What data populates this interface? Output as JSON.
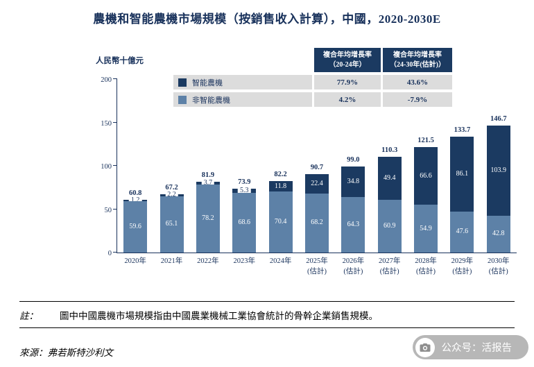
{
  "title": "農機和智能農機市場規模（按銷售收入計算），中國，2020-2030E",
  "y_axis": {
    "unit_label": "人民幣十億元",
    "ticks": [
      0,
      50,
      100,
      150,
      200
    ],
    "max": 200
  },
  "legend_table": {
    "headers": [
      "複合年均增長率\n（20-24年）",
      "複合年均增長率\n（24-30年(估計)）"
    ],
    "rows": [
      {
        "label": "智能農機",
        "swatch_color": "#1b3a61",
        "cagr_20_24": "77.9%",
        "cagr_24_30": "43.6%"
      },
      {
        "label": "非智能農機",
        "swatch_color": "#5d81a7",
        "cagr_20_24": "4.2%",
        "cagr_24_30": "-7.9%"
      }
    ]
  },
  "chart_data": {
    "type": "bar",
    "stacked": true,
    "title": "農機和智能農機市場規模（按銷售收入計算），中國，2020-2030E",
    "ylabel": "人民幣十億元",
    "ylim": [
      0,
      200
    ],
    "grid": false,
    "legend_position": "top-left-of-plot",
    "categories": [
      "2020年",
      "2021年",
      "2022年",
      "2023年",
      "2024年",
      "2025年\n(估計)",
      "2026年\n(估計)",
      "2027年\n(估計)",
      "2028年\n(估計)",
      "2029年\n(估計)",
      "2030年\n(估計)"
    ],
    "series": [
      {
        "name": "非智能農機",
        "color": "#5d81a7",
        "values": [
          59.6,
          65.1,
          78.2,
          68.6,
          70.4,
          68.2,
          64.3,
          60.9,
          54.9,
          47.6,
          42.8
        ]
      },
      {
        "name": "智能農機",
        "color": "#1b3a61",
        "values": [
          1.2,
          2.2,
          3.7,
          5.3,
          11.8,
          22.4,
          34.8,
          49.4,
          66.6,
          86.1,
          103.9
        ]
      }
    ],
    "totals": [
      60.8,
      67.2,
      81.9,
      73.9,
      82.2,
      90.7,
      99.0,
      110.3,
      121.5,
      133.7,
      146.7
    ]
  },
  "note": {
    "prefix": "註：",
    "text": "圖中中國農機市場規模指由中國農業機械工業協會統計的骨幹企業銷售規模。"
  },
  "source": "來源：弗若斯特沙利文",
  "watermark": {
    "text": "公众号：活报告",
    "icon": "camera-icon"
  }
}
